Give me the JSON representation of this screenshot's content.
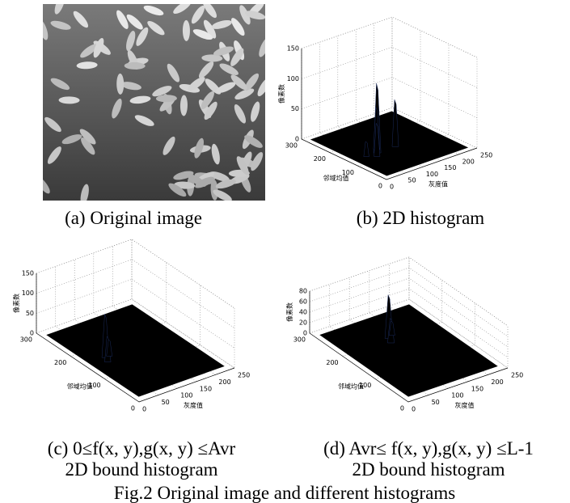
{
  "panels": [
    {
      "caption": [
        "(a) Original image"
      ]
    },
    {
      "caption": [
        "(b) 2D histogram"
      ],
      "z_label": "像素数",
      "y_label": "邻域均值",
      "x_label": "灰度值",
      "z_ticks": [
        0,
        50,
        100,
        150
      ],
      "y_ticks": [
        0,
        100,
        200,
        300
      ],
      "x_ticks": [
        0,
        50,
        100,
        150,
        200,
        250
      ]
    },
    {
      "caption": [
        "(c) 0≤f(x, y),g(x, y) ≤Avr",
        "2D bound histogram"
      ],
      "z_label": "像素数",
      "y_label": "邻域均值",
      "x_label": "灰度值",
      "z_ticks": [
        0,
        50,
        100,
        150
      ],
      "y_ticks": [
        0,
        100,
        200,
        300
      ],
      "x_ticks": [
        0,
        50,
        100,
        150,
        200,
        250
      ]
    },
    {
      "caption": [
        "(d) Avr≤ f(x, y),g(x, y) ≤L-1",
        "2D bound histogram"
      ],
      "z_label": "像素数",
      "y_label": "邻域均值",
      "x_label": "灰度值",
      "z_ticks": [
        0,
        20,
        40,
        60,
        80
      ],
      "y_ticks": [
        0,
        100,
        200,
        300
      ],
      "x_ticks": [
        0,
        50,
        100,
        150,
        200,
        250
      ]
    }
  ],
  "figure_caption": "Fig.2 Original image and different histograms"
}
